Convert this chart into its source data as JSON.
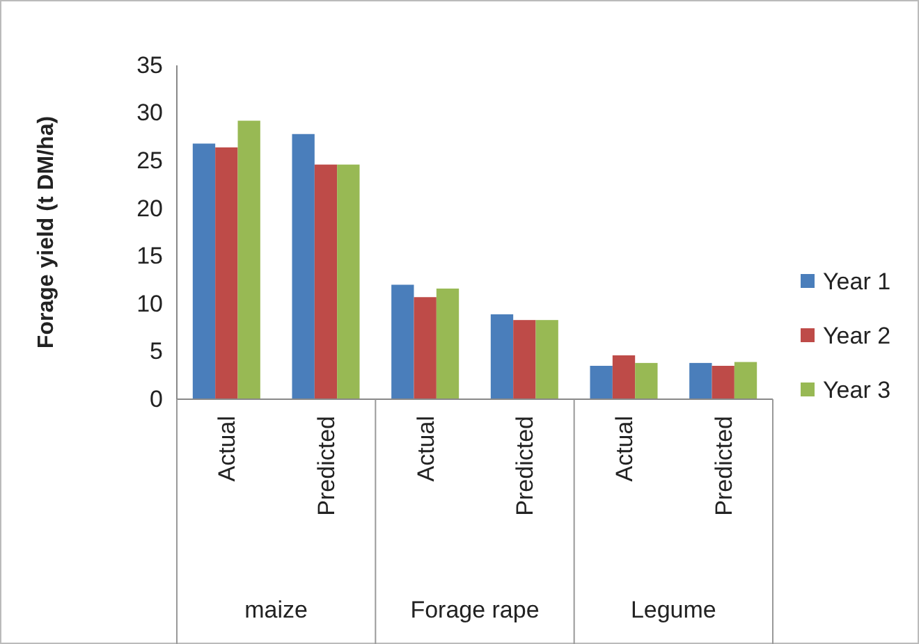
{
  "chart_data": {
    "type": "bar",
    "ylabel": "Forage yield (t DM/ha)",
    "categories": [
      "Actual",
      "Predicted",
      "Actual",
      "Predicted",
      "Actual",
      "Predicted"
    ],
    "annotations": [
      "maize",
      "Forage rape",
      "Legume"
    ],
    "series": [
      {
        "name": "Year 1",
        "color": "#4a7ebb",
        "values": [
          26.8,
          27.8,
          12.0,
          8.9,
          3.5,
          3.8
        ]
      },
      {
        "name": "Year 2",
        "color": "#be4b48",
        "values": [
          26.4,
          24.6,
          10.7,
          8.3,
          4.6,
          3.5
        ]
      },
      {
        "name": "Year 3",
        "color": "#98b954",
        "values": [
          29.2,
          24.6,
          11.6,
          8.3,
          3.8,
          3.9
        ]
      }
    ],
    "ylim": [
      0,
      35
    ],
    "yticks": [
      0,
      5,
      10,
      15,
      20,
      25,
      30,
      35
    ],
    "grid": false,
    "legend": "right"
  }
}
